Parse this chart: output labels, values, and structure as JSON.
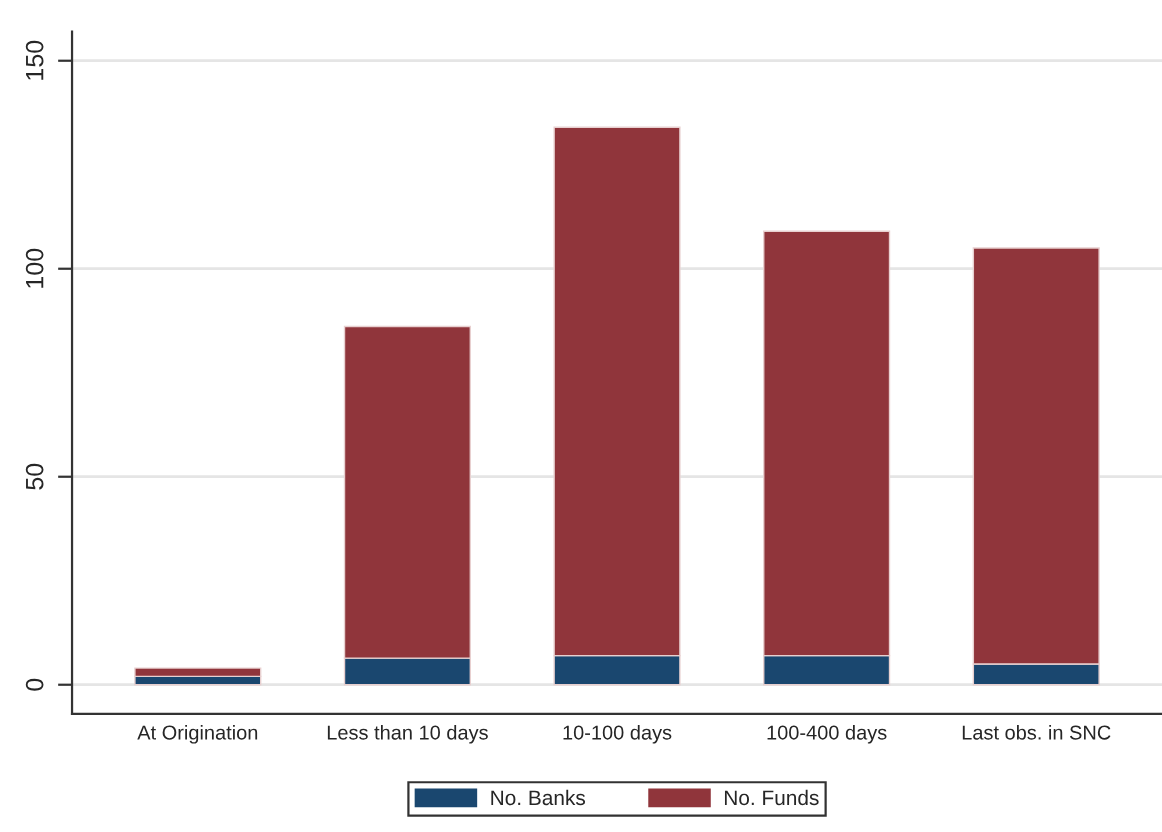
{
  "chart_data": {
    "type": "bar",
    "stacked": true,
    "categories": [
      "At Origination",
      "Less than 10 days",
      "10-100 days",
      "100-400 days",
      "Last obs. in SNC"
    ],
    "series": [
      {
        "name": "No. Banks",
        "color": "#1a476f",
        "values": [
          2,
          6.4,
          7,
          7,
          5
        ]
      },
      {
        "name": "No. Funds",
        "color": "#90353b",
        "values": [
          2,
          79.7,
          127,
          102,
          100
        ]
      }
    ],
    "ylim": [
      -7,
      157
    ],
    "yticks": [
      0,
      50,
      100,
      150
    ],
    "grid": "y",
    "legend": "bottom"
  }
}
